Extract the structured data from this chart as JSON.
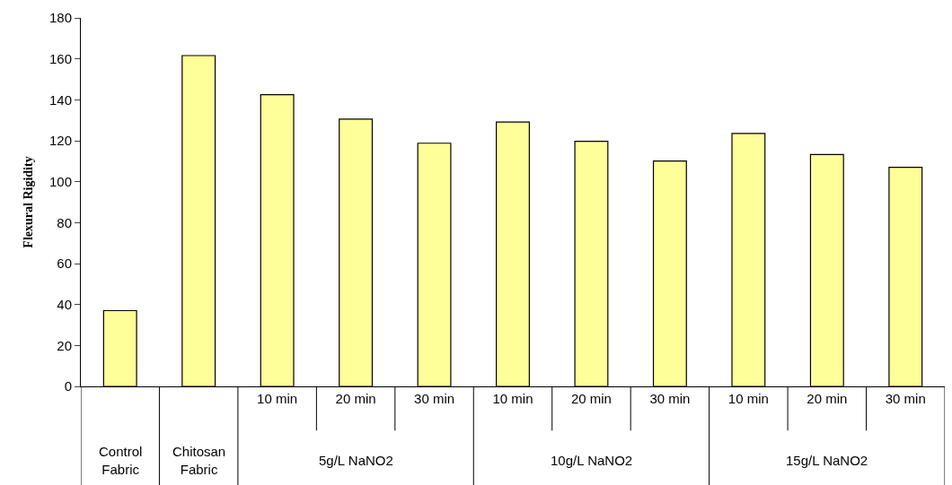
{
  "chart_data": {
    "type": "bar",
    "ylabel": "Flexural Rigidity",
    "categories": [
      null,
      null,
      "10 min",
      "20 min",
      "30 min",
      "10 min",
      "20 min",
      "30 min",
      "10 min",
      "20 min",
      "30 min"
    ],
    "values": [
      37,
      161.6,
      142.5,
      130.6,
      118.8,
      129.1,
      119.7,
      110.1,
      123.6,
      113.3,
      107.0
    ],
    "color": "#ffff99",
    "annotations": [
      "Control Fabric",
      "Chitosan Fabric",
      "5g/L NaNO2",
      "10g/L NaNO2",
      "15g/L NaNO2"
    ],
    "ylim": [
      0,
      180
    ],
    "yticks": [
      0,
      20,
      40,
      60,
      80,
      100,
      120,
      140,
      160,
      180
    ],
    "legend": false
  }
}
